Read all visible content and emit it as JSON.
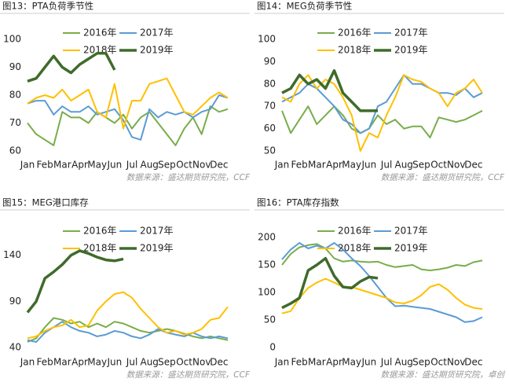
{
  "chart_data": [
    {
      "type": "line",
      "title": "图13：PTA负荷季节性",
      "source": "数据来源：盛达期货研究院，CCF",
      "categories": [
        "Jan",
        null,
        "Feb",
        null,
        "Mar",
        null,
        "Apr",
        null,
        "May",
        null,
        "Jun",
        null,
        "Jul",
        null,
        "Aug",
        null,
        "Sep",
        null,
        "Oct",
        null,
        "Nov",
        null,
        "Dec",
        null
      ],
      "ylim": [
        60,
        100
      ],
      "yticks": [
        60,
        70,
        80,
        90,
        100
      ],
      "series": [
        {
          "name": "2016年",
          "color": "#79ad4a",
          "values": [
            70,
            66,
            64,
            62,
            74,
            72,
            72,
            70,
            74,
            72,
            70,
            73,
            68,
            72,
            74,
            70,
            66,
            62,
            68,
            72,
            66,
            76,
            74,
            75
          ]
        },
        {
          "name": "2017年",
          "color": "#5b9bd5",
          "values": [
            77,
            78,
            78,
            73,
            76,
            74,
            74,
            76,
            73,
            74,
            75,
            71,
            65,
            64,
            75,
            72,
            74,
            73,
            74,
            72,
            74,
            75,
            80,
            79
          ]
        },
        {
          "name": "2018年",
          "color": "#ffc000",
          "values": [
            77,
            79,
            80,
            79,
            82,
            78,
            80,
            82,
            74,
            72,
            84,
            68,
            78,
            78,
            84,
            85,
            86,
            80,
            74,
            73,
            76,
            79,
            81,
            79
          ]
        },
        {
          "name": "2019年",
          "color": "#3f6b2b",
          "values": [
            85,
            86,
            90,
            94,
            90,
            88,
            91,
            93,
            95,
            95,
            89,
            null,
            null,
            null,
            null,
            null,
            null,
            null,
            null,
            null,
            null,
            null,
            null,
            null
          ]
        }
      ]
    },
    {
      "type": "line",
      "title": "图14：MEG负荷季节性",
      "source": "数据来源：盛达期货研究院，CCF",
      "categories": [
        "Jan",
        null,
        "Feb",
        null,
        "Mar",
        null,
        "Apr",
        null,
        "May",
        null,
        "Jun",
        null,
        "Jul",
        null,
        "Aug",
        null,
        "Sep",
        null,
        "Oct",
        null,
        "Nov",
        null,
        "Dec",
        null
      ],
      "ylim": [
        50,
        100
      ],
      "yticks": [
        50,
        60,
        70,
        80,
        90,
        100
      ],
      "series": [
        {
          "name": "2016年",
          "color": "#79ad4a",
          "values": [
            68,
            58,
            64,
            70,
            62,
            66,
            70,
            66,
            60,
            58,
            60,
            66,
            62,
            64,
            60,
            61,
            61,
            56,
            65,
            64,
            63,
            64,
            66,
            68
          ]
        },
        {
          "name": "2017年",
          "color": "#5b9bd5",
          "values": [
            72,
            74,
            76,
            80,
            78,
            74,
            70,
            64,
            62,
            58,
            60,
            70,
            72,
            78,
            84,
            80,
            80,
            78,
            76,
            76,
            75,
            78,
            74,
            76
          ]
        },
        {
          "name": "2018年",
          "color": "#ffc000",
          "values": [
            74,
            72,
            80,
            84,
            78,
            82,
            80,
            74,
            66,
            50,
            58,
            56,
            66,
            74,
            84,
            82,
            81,
            78,
            76,
            70,
            76,
            78,
            82,
            76
          ]
        },
        {
          "name": "2019年",
          "color": "#3f6b2b",
          "values": [
            76,
            78,
            84,
            80,
            82,
            78,
            86,
            76,
            72,
            68,
            68,
            68,
            null,
            null,
            null,
            null,
            null,
            null,
            null,
            null,
            null,
            null,
            null,
            null
          ]
        }
      ]
    },
    {
      "type": "line",
      "title": "图15：MEG港口库存",
      "source": "数据来源：盛达期货研究院，CCF",
      "categories": [
        "Jan",
        null,
        "Feb",
        null,
        "Mar",
        null,
        "Apr",
        null,
        "May",
        null,
        "Jun",
        null,
        "Jul",
        null,
        "Aug",
        null,
        "Sep",
        null,
        "Oct",
        null,
        "Nov",
        null,
        "Dec",
        null
      ],
      "ylim": [
        40,
        150
      ],
      "yticks": [
        40,
        90,
        140
      ],
      "series": [
        {
          "name": "2016年",
          "color": "#79ad4a",
          "values": [
            46,
            50,
            62,
            72,
            70,
            66,
            68,
            62,
            66,
            62,
            68,
            66,
            62,
            58,
            56,
            58,
            60,
            58,
            55,
            52,
            50,
            52,
            50,
            48
          ]
        },
        {
          "name": "2017年",
          "color": "#5b9bd5",
          "values": [
            48,
            46,
            56,
            62,
            68,
            62,
            58,
            56,
            52,
            54,
            58,
            56,
            52,
            50,
            54,
            60,
            56,
            54,
            52,
            56,
            52,
            50,
            52,
            50
          ]
        },
        {
          "name": "2018年",
          "color": "#ffc000",
          "values": [
            50,
            52,
            58,
            62,
            64,
            70,
            62,
            64,
            80,
            90,
            98,
            100,
            94,
            82,
            72,
            62,
            56,
            58,
            54,
            56,
            60,
            70,
            72,
            84
          ]
        },
        {
          "name": "2019年",
          "color": "#3f6b2b",
          "values": [
            78,
            90,
            115,
            122,
            130,
            140,
            145,
            142,
            138,
            135,
            134,
            136,
            null,
            null,
            null,
            null,
            null,
            null,
            null,
            null,
            null,
            null,
            null,
            null
          ]
        }
      ]
    },
    {
      "type": "line",
      "title": "图16：PTA库存指数",
      "source": "数据来源：盛达期货研究院，卓创",
      "categories": [
        "Jan",
        null,
        "Feb",
        null,
        "Mar",
        null,
        "Apr",
        null,
        "May",
        null,
        "Jun",
        null,
        "Jul",
        null,
        "Aug",
        null,
        "Sep",
        null,
        "Oct",
        null,
        "Nov",
        null,
        "Dec",
        null
      ],
      "ylim": [
        0,
        200
      ],
      "yticks": [
        0,
        50,
        100,
        150,
        200
      ],
      "series": [
        {
          "name": "2016年",
          "color": "#79ad4a",
          "values": [
            150,
            170,
            182,
            186,
            188,
            180,
            162,
            156,
            158,
            156,
            155,
            156,
            150,
            146,
            148,
            150,
            142,
            140,
            142,
            145,
            150,
            148,
            155,
            158
          ]
        },
        {
          "name": "2017年",
          "color": "#5b9bd5",
          "values": [
            160,
            178,
            190,
            180,
            185,
            180,
            190,
            178,
            162,
            148,
            130,
            110,
            90,
            75,
            76,
            74,
            72,
            70,
            65,
            60,
            55,
            46,
            48,
            55
          ]
        },
        {
          "name": "2018年",
          "color": "#ffc000",
          "values": [
            62,
            66,
            90,
            108,
            118,
            125,
            118,
            110,
            110,
            105,
            100,
            95,
            90,
            82,
            80,
            85,
            95,
            110,
            115,
            105,
            90,
            78,
            72,
            70
          ]
        },
        {
          "name": "2019年",
          "color": "#3f6b2b",
          "values": [
            72,
            80,
            90,
            140,
            150,
            162,
            130,
            110,
            108,
            120,
            128,
            126,
            null,
            null,
            null,
            null,
            null,
            null,
            null,
            null,
            null,
            null,
            null,
            null
          ]
        }
      ]
    }
  ]
}
